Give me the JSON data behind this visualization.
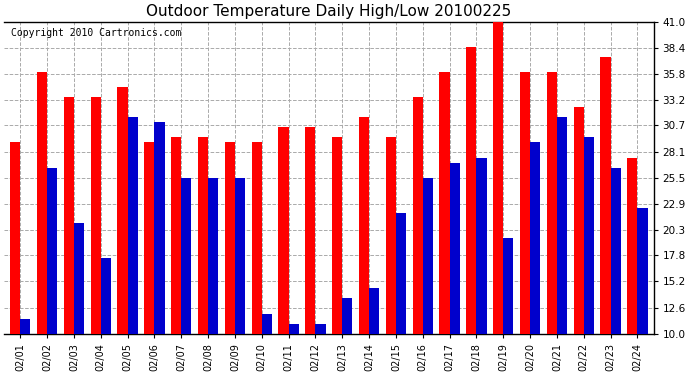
{
  "title": "Outdoor Temperature Daily High/Low 20100225",
  "copyright": "Copyright 2010 Cartronics.com",
  "dates": [
    "02/01",
    "02/02",
    "02/03",
    "02/04",
    "02/05",
    "02/06",
    "02/07",
    "02/08",
    "02/09",
    "02/10",
    "02/11",
    "02/12",
    "02/13",
    "02/14",
    "02/15",
    "02/16",
    "02/17",
    "02/18",
    "02/19",
    "02/20",
    "02/21",
    "02/22",
    "02/23",
    "02/24"
  ],
  "highs": [
    29.0,
    36.0,
    33.5,
    33.5,
    34.5,
    29.0,
    29.5,
    29.5,
    29.0,
    29.0,
    30.5,
    30.5,
    29.5,
    31.5,
    29.5,
    33.5,
    36.0,
    38.5,
    41.0,
    36.0,
    36.0,
    32.5,
    37.5,
    27.5
  ],
  "lows": [
    11.5,
    26.5,
    21.0,
    17.5,
    31.5,
    31.0,
    25.5,
    25.5,
    25.5,
    12.0,
    11.0,
    11.0,
    13.5,
    14.5,
    22.0,
    25.5,
    27.0,
    27.5,
    19.5,
    29.0,
    31.5,
    29.5,
    26.5,
    22.5
  ],
  "high_color": "#ff0000",
  "low_color": "#0000cc",
  "ymin": 10.0,
  "ymax": 41.0,
  "yticks": [
    10.0,
    12.6,
    15.2,
    17.8,
    20.3,
    22.9,
    25.5,
    28.1,
    30.7,
    33.2,
    35.8,
    38.4,
    41.0
  ],
  "background_color": "#ffffff",
  "grid_color": "#aaaaaa",
  "title_fontsize": 11,
  "copyright_fontsize": 7,
  "bar_width": 0.38
}
